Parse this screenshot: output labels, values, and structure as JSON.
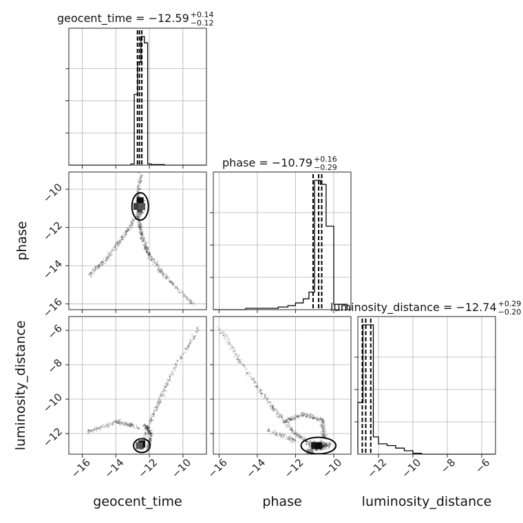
{
  "chart_data": {
    "type": "scatter",
    "subtype": "corner",
    "parameters": [
      "geocent_time",
      "phase",
      "luminosity_distance"
    ],
    "grid": true,
    "ranges": {
      "geocent_time": [
        -16.8,
        -8.6
      ],
      "phase": [
        -16.3,
        -9.1
      ],
      "luminosity_distance": [
        -13.2,
        -5.2
      ]
    },
    "ticks": {
      "geocent_time": [
        -16,
        -14,
        -12,
        -10
      ],
      "phase": [
        -16,
        -14,
        -12,
        -10
      ],
      "luminosity_distance": [
        -12,
        -10,
        -8,
        -6
      ]
    },
    "tick_labels": {
      "geocent_time": [
        "−16",
        "−14",
        "−12",
        "−10"
      ],
      "phase": [
        "−16",
        "−14",
        "−12",
        "−10"
      ],
      "luminosity_distance": [
        "−12",
        "−10",
        "−8",
        "−6"
      ]
    },
    "titles": [
      {
        "param": "geocent_time",
        "text": "geocent_time = −12.59",
        "plus": "+0.14",
        "minus": "−0.12"
      },
      {
        "param": "phase",
        "text": "phase = −10.79",
        "plus": "+0.16",
        "minus": "−0.29"
      },
      {
        "param": "luminosity_distance",
        "text": "luminosity_distance = −12.74",
        "plus": "+0.29",
        "minus": "−0.20"
      }
    ],
    "quantile_lines": {
      "geocent_time": [
        -12.71,
        -12.59,
        -12.45
      ],
      "phase": [
        -11.08,
        -10.79,
        -10.63
      ],
      "luminosity_distance": [
        -12.94,
        -12.74,
        -12.45
      ]
    },
    "histograms": {
      "geocent_time": {
        "edges": [
          -13.1,
          -12.9,
          -12.7,
          -12.5,
          -12.3,
          -12.1,
          -11.9,
          -11.1
        ],
        "counts": [
          0.01,
          0.55,
          0.8,
          1.0,
          0.95,
          0.01,
          0.005
        ]
      },
      "phase": {
        "edges": [
          -14.6,
          -12.9,
          -12.4,
          -12.0,
          -11.6,
          -11.3,
          -11.0,
          -10.7,
          -10.4,
          -10.0,
          -9.3
        ],
        "counts": [
          0.01,
          0.02,
          0.03,
          0.05,
          0.08,
          0.13,
          0.96,
          0.93,
          0.62,
          0.04
        ]
      },
      "luminosity_distance": {
        "edges": [
          -13.2,
          -12.9,
          -12.6,
          -12.3,
          -12.0,
          -11.5,
          -11.0,
          -10.5,
          -10.0,
          -9.5
        ],
        "counts": [
          0.3,
          0.75,
          0.75,
          0.1,
          0.06,
          0.05,
          0.035,
          0.02,
          0.005
        ]
      }
    },
    "scatter_structure": {
      "phase_vs_geocent_time": {
        "core": {
          "center": [
            -12.55,
            -10.9
          ],
          "spread": [
            0.15,
            0.3
          ]
        },
        "paths": [
          [
            [
              -12.5,
              -9.2
            ],
            [
              -12.7,
              -10.5
            ],
            [
              -12.6,
              -11.8
            ],
            [
              -12.4,
              -12.6
            ],
            [
              -12.0,
              -13.5
            ],
            [
              -11.0,
              -14.6
            ],
            [
              -9.4,
              -16.0
            ]
          ],
          [
            [
              -12.5,
              -11.0
            ],
            [
              -13.4,
              -12.3
            ],
            [
              -14.5,
              -13.6
            ],
            [
              -15.6,
              -14.5
            ]
          ]
        ]
      },
      "luminosity_distance_vs_geocent_time": {
        "core": {
          "center": [
            -12.45,
            -12.7
          ],
          "spread": [
            0.1,
            0.12
          ]
        },
        "paths": [
          [
            [
              -12.5,
              -12.7
            ],
            [
              -11.6,
              -10.5
            ],
            [
              -10.7,
              -8.6
            ],
            [
              -9.0,
              -5.8
            ]
          ],
          [
            [
              -12.5,
              -11.7
            ],
            [
              -13.9,
              -11.3
            ],
            [
              -15.7,
              -11.9
            ]
          ],
          [
            [
              -12.3,
              -11.5
            ],
            [
              -11.9,
              -12.0
            ],
            [
              -12.1,
              -13.0
            ]
          ]
        ]
      },
      "luminosity_distance_vs_phase": {
        "core": {
          "center": [
            -10.8,
            -12.7
          ],
          "spread": [
            0.35,
            0.2
          ]
        },
        "paths": [
          [
            [
              -16.0,
              -5.8
            ],
            [
              -14.5,
              -8.5
            ],
            [
              -13.2,
              -10.5
            ],
            [
              -12.0,
              -12.0
            ],
            [
              -11.0,
              -12.8
            ],
            [
              -10.2,
              -12.6
            ]
          ],
          [
            [
              -12.6,
              -11.3
            ],
            [
              -11.6,
              -10.9
            ],
            [
              -10.6,
              -11.2
            ],
            [
              -10.5,
              -12.3
            ]
          ],
          [
            [
              -13.5,
              -11.8
            ],
            [
              -12.0,
              -12.4
            ]
          ]
        ]
      }
    },
    "dense_cells": {
      "phase_vs_geocent_time": [
        [
          -12.55,
          -10.6,
          1.0
        ],
        [
          -12.75,
          -10.9,
          0.8
        ],
        [
          -12.45,
          -10.9,
          0.7
        ]
      ],
      "luminosity_distance_vs_geocent_time": [
        [
          -12.45,
          -12.6,
          1.0
        ],
        [
          -12.6,
          -12.7,
          0.7
        ]
      ],
      "luminosity_distance_vs_phase": [
        [
          -11.0,
          -12.7,
          0.95
        ],
        [
          -10.8,
          -12.7,
          1.0
        ],
        [
          -11.25,
          -13.1,
          0.45
        ]
      ]
    }
  }
}
